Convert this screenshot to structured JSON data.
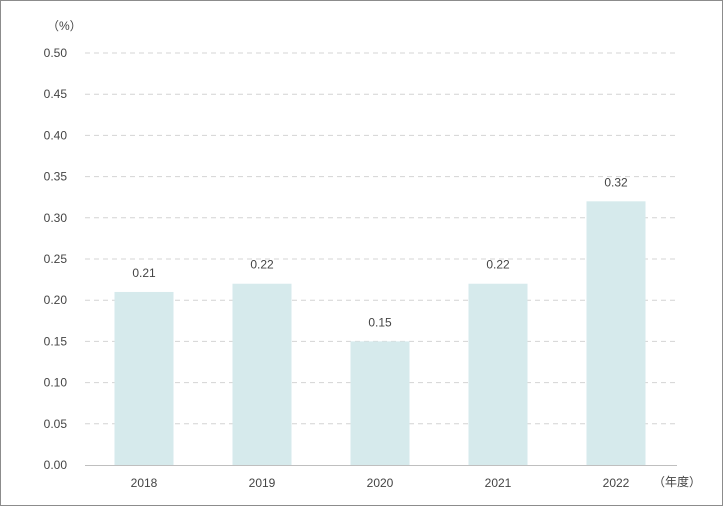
{
  "chart_data": {
    "type": "bar",
    "y_unit_label": "（%）",
    "x_unit_label": "（年度）",
    "categories": [
      "2018",
      "2019",
      "2020",
      "2021",
      "2022"
    ],
    "values": [
      0.21,
      0.22,
      0.15,
      0.22,
      0.32
    ],
    "value_labels": [
      "0.21",
      "0.22",
      "0.15",
      "0.22",
      "0.32"
    ],
    "ylim": [
      0,
      0.5
    ],
    "yticks": [
      "0.00",
      "0.05",
      "0.10",
      "0.15",
      "0.20",
      "0.25",
      "0.30",
      "0.35",
      "0.40",
      "0.45",
      "0.50"
    ],
    "grid": true,
    "bar_color": "#d6eaec",
    "grid_color": "#d4d4d4",
    "axis_color": "#bfbfbf",
    "text_color": "#444444"
  }
}
